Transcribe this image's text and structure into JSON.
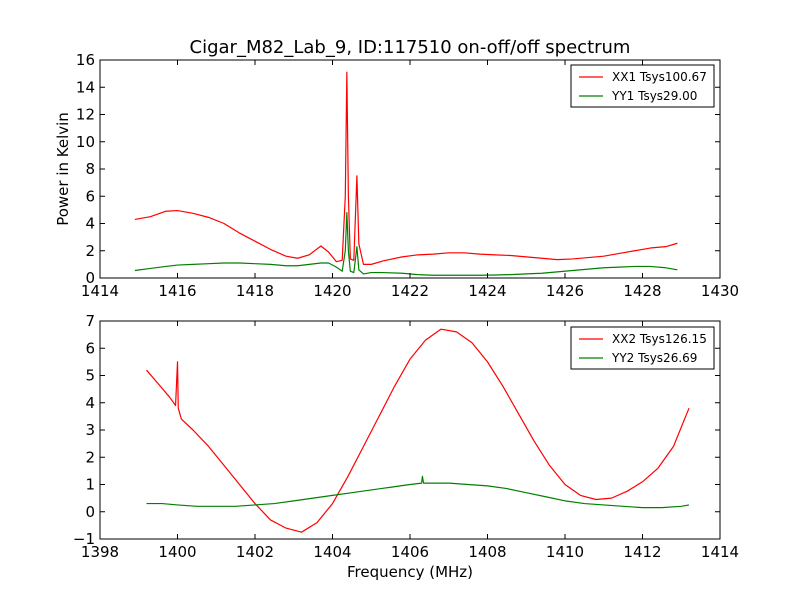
{
  "chart_data": [
    {
      "type": "line",
      "title": "Cigar_M82_Lab_9, ID:117510 on-off/off spectrum",
      "xlabel": "",
      "ylabel": "Power in Kelvin",
      "xlim": [
        1414,
        1430
      ],
      "ylim": [
        0,
        16
      ],
      "xticks": [
        1414,
        1416,
        1418,
        1420,
        1422,
        1424,
        1426,
        1428,
        1430
      ],
      "yticks": [
        0,
        2,
        4,
        6,
        8,
        10,
        12,
        14,
        16
      ],
      "legend_position": "top-right",
      "grid": false,
      "series": [
        {
          "name": "XX1 Tsys100.67",
          "color": "#ff0000",
          "points": [
            [
              1414.9,
              4.3
            ],
            [
              1415.3,
              4.5
            ],
            [
              1415.7,
              4.9
            ],
            [
              1416.0,
              4.95
            ],
            [
              1416.4,
              4.75
            ],
            [
              1416.8,
              4.45
            ],
            [
              1417.2,
              4.0
            ],
            [
              1417.6,
              3.3
            ],
            [
              1418.0,
              2.7
            ],
            [
              1418.4,
              2.1
            ],
            [
              1418.8,
              1.6
            ],
            [
              1419.1,
              1.45
            ],
            [
              1419.4,
              1.7
            ],
            [
              1419.7,
              2.35
            ],
            [
              1419.9,
              1.9
            ],
            [
              1420.1,
              1.2
            ],
            [
              1420.25,
              1.3
            ],
            [
              1420.33,
              6.0
            ],
            [
              1420.37,
              15.1
            ],
            [
              1420.41,
              6.0
            ],
            [
              1420.46,
              1.4
            ],
            [
              1420.55,
              1.3
            ],
            [
              1420.63,
              7.5
            ],
            [
              1420.68,
              2.5
            ],
            [
              1420.8,
              1.0
            ],
            [
              1421.0,
              1.0
            ],
            [
              1421.3,
              1.25
            ],
            [
              1421.8,
              1.55
            ],
            [
              1422.2,
              1.7
            ],
            [
              1422.6,
              1.75
            ],
            [
              1423.0,
              1.85
            ],
            [
              1423.4,
              1.85
            ],
            [
              1423.8,
              1.75
            ],
            [
              1424.2,
              1.7
            ],
            [
              1424.6,
              1.65
            ],
            [
              1425.0,
              1.55
            ],
            [
              1425.4,
              1.45
            ],
            [
              1425.8,
              1.35
            ],
            [
              1426.2,
              1.4
            ],
            [
              1426.6,
              1.5
            ],
            [
              1427.0,
              1.6
            ],
            [
              1427.4,
              1.8
            ],
            [
              1427.8,
              2.0
            ],
            [
              1428.2,
              2.2
            ],
            [
              1428.6,
              2.3
            ],
            [
              1428.9,
              2.55
            ]
          ]
        },
        {
          "name": "YY1 Tsys29.00",
          "color": "#008000",
          "points": [
            [
              1414.9,
              0.55
            ],
            [
              1415.3,
              0.7
            ],
            [
              1415.7,
              0.85
            ],
            [
              1416.0,
              0.95
            ],
            [
              1416.4,
              1.0
            ],
            [
              1416.8,
              1.05
            ],
            [
              1417.2,
              1.1
            ],
            [
              1417.6,
              1.1
            ],
            [
              1418.0,
              1.05
            ],
            [
              1418.4,
              1.0
            ],
            [
              1418.8,
              0.9
            ],
            [
              1419.1,
              0.9
            ],
            [
              1419.4,
              1.0
            ],
            [
              1419.7,
              1.1
            ],
            [
              1419.9,
              1.1
            ],
            [
              1420.1,
              0.8
            ],
            [
              1420.25,
              0.5
            ],
            [
              1420.33,
              2.0
            ],
            [
              1420.37,
              4.8
            ],
            [
              1420.41,
              2.0
            ],
            [
              1420.46,
              0.5
            ],
            [
              1420.55,
              0.4
            ],
            [
              1420.63,
              2.3
            ],
            [
              1420.68,
              0.6
            ],
            [
              1420.8,
              0.3
            ],
            [
              1421.0,
              0.4
            ],
            [
              1421.3,
              0.4
            ],
            [
              1421.8,
              0.35
            ],
            [
              1422.2,
              0.25
            ],
            [
              1422.6,
              0.2
            ],
            [
              1423.0,
              0.2
            ],
            [
              1423.4,
              0.2
            ],
            [
              1423.8,
              0.2
            ],
            [
              1424.2,
              0.22
            ],
            [
              1424.6,
              0.25
            ],
            [
              1425.0,
              0.3
            ],
            [
              1425.4,
              0.35
            ],
            [
              1425.8,
              0.45
            ],
            [
              1426.2,
              0.55
            ],
            [
              1426.6,
              0.65
            ],
            [
              1427.0,
              0.75
            ],
            [
              1427.4,
              0.8
            ],
            [
              1427.8,
              0.85
            ],
            [
              1428.2,
              0.85
            ],
            [
              1428.6,
              0.75
            ],
            [
              1428.9,
              0.6
            ]
          ]
        }
      ]
    },
    {
      "type": "line",
      "title": "",
      "xlabel": "Frequency (MHz)",
      "ylabel": "",
      "xlim": [
        1398,
        1414
      ],
      "ylim": [
        -1,
        7
      ],
      "xticks": [
        1398,
        1400,
        1402,
        1404,
        1406,
        1408,
        1410,
        1412,
        1414
      ],
      "yticks": [
        -1,
        0,
        1,
        2,
        3,
        4,
        5,
        6,
        7
      ],
      "legend_position": "top-right",
      "grid": false,
      "series": [
        {
          "name": "XX2 Tsys126.15",
          "color": "#ff0000",
          "points": [
            [
              1399.2,
              5.2
            ],
            [
              1399.5,
              4.7
            ],
            [
              1399.8,
              4.2
            ],
            [
              1399.95,
              3.9
            ],
            [
              1400.0,
              5.5
            ],
            [
              1400.02,
              3.8
            ],
            [
              1400.1,
              3.4
            ],
            [
              1400.4,
              3.0
            ],
            [
              1400.8,
              2.4
            ],
            [
              1401.2,
              1.7
            ],
            [
              1401.6,
              1.0
            ],
            [
              1402.0,
              0.3
            ],
            [
              1402.4,
              -0.3
            ],
            [
              1402.8,
              -0.6
            ],
            [
              1403.2,
              -0.75
            ],
            [
              1403.6,
              -0.4
            ],
            [
              1404.0,
              0.3
            ],
            [
              1404.4,
              1.3
            ],
            [
              1404.8,
              2.4
            ],
            [
              1405.2,
              3.5
            ],
            [
              1405.6,
              4.6
            ],
            [
              1406.0,
              5.6
            ],
            [
              1406.4,
              6.3
            ],
            [
              1406.8,
              6.7
            ],
            [
              1407.2,
              6.6
            ],
            [
              1407.6,
              6.2
            ],
            [
              1408.0,
              5.5
            ],
            [
              1408.4,
              4.6
            ],
            [
              1408.8,
              3.6
            ],
            [
              1409.2,
              2.6
            ],
            [
              1409.6,
              1.7
            ],
            [
              1410.0,
              1.0
            ],
            [
              1410.4,
              0.6
            ],
            [
              1410.8,
              0.45
            ],
            [
              1411.2,
              0.5
            ],
            [
              1411.6,
              0.75
            ],
            [
              1412.0,
              1.1
            ],
            [
              1412.4,
              1.6
            ],
            [
              1412.8,
              2.4
            ],
            [
              1413.2,
              3.8
            ]
          ]
        },
        {
          "name": "YY2 Tsys26.69",
          "color": "#008000",
          "points": [
            [
              1399.2,
              0.3
            ],
            [
              1399.6,
              0.3
            ],
            [
              1400.0,
              0.25
            ],
            [
              1400.5,
              0.2
            ],
            [
              1401.0,
              0.2
            ],
            [
              1401.5,
              0.2
            ],
            [
              1402.0,
              0.25
            ],
            [
              1402.5,
              0.3
            ],
            [
              1403.0,
              0.4
            ],
            [
              1403.5,
              0.5
            ],
            [
              1404.0,
              0.6
            ],
            [
              1404.5,
              0.7
            ],
            [
              1405.0,
              0.8
            ],
            [
              1405.5,
              0.9
            ],
            [
              1406.0,
              1.0
            ],
            [
              1406.3,
              1.05
            ],
            [
              1406.32,
              1.3
            ],
            [
              1406.35,
              1.05
            ],
            [
              1406.5,
              1.05
            ],
            [
              1407.0,
              1.05
            ],
            [
              1407.5,
              1.0
            ],
            [
              1408.0,
              0.95
            ],
            [
              1408.5,
              0.85
            ],
            [
              1409.0,
              0.7
            ],
            [
              1409.5,
              0.55
            ],
            [
              1410.0,
              0.4
            ],
            [
              1410.5,
              0.3
            ],
            [
              1411.0,
              0.25
            ],
            [
              1411.5,
              0.2
            ],
            [
              1412.0,
              0.15
            ],
            [
              1412.5,
              0.15
            ],
            [
              1413.0,
              0.2
            ],
            [
              1413.2,
              0.25
            ]
          ]
        }
      ]
    }
  ]
}
